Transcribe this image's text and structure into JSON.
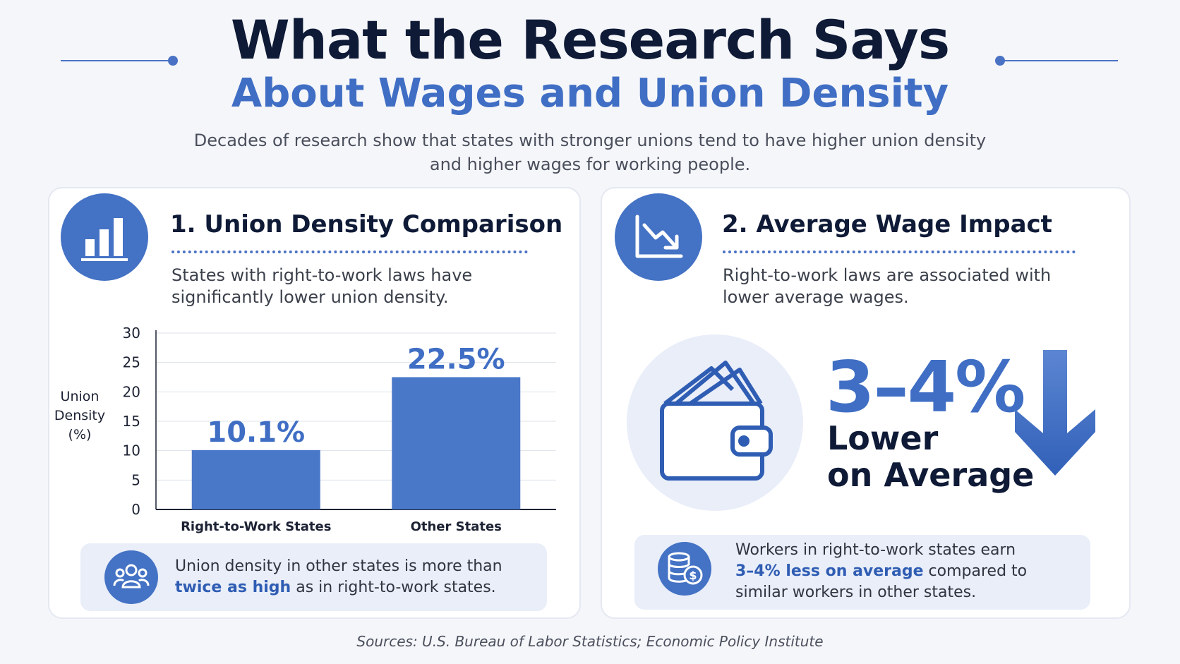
{
  "header": {
    "title": "What the Research Says",
    "subtitle": "About Wages and Union Density",
    "intro_line1": "Decades of research show that states with stronger unions tend to have higher union density",
    "intro_line2": "and higher wages for working people."
  },
  "left_card": {
    "title": "1. Union Density Comparison",
    "desc_line1": "States with right-to-work laws have",
    "desc_line2": "significantly lower union density.",
    "callout_pre": "Union density in other states is more than",
    "callout_bold": "twice as high",
    "callout_post": " as in right-to-work states."
  },
  "right_card": {
    "title": "2. Average Wage Impact",
    "desc_line1": "Right-to-work laws are associated with",
    "desc_line2": "lower average wages.",
    "big_value": "3–4%",
    "big_line1": "Lower",
    "big_line2": "on Average",
    "callout_pre": "Workers in right-to-work states earn",
    "callout_bold": "3–4% less on average",
    "callout_post": " compared to",
    "callout_line3": "similar workers in other states."
  },
  "chart_data": {
    "type": "bar",
    "categories": [
      "Right-to-Work States",
      "Other States"
    ],
    "values": [
      10.1,
      22.5
    ],
    "value_labels": [
      "10.1%",
      "22.5%"
    ],
    "ylabel_lines": [
      "Union",
      "Density",
      "(%)"
    ],
    "yticks": [
      "0",
      "5",
      "10",
      "15",
      "20",
      "25",
      "30"
    ],
    "ylim": [
      0,
      30
    ],
    "grid": true,
    "bar_color": "#4a78c9",
    "label_color": "#3f6ec4"
  },
  "footer": {
    "sources": "Sources: U.S. Bureau of Labor Statistics; Economic Policy Institute"
  },
  "colors": {
    "accent": "#4472c4",
    "title_dark": "#0e1a36"
  },
  "icons": [
    "bar-chart-icon",
    "trend-down-icon",
    "people-group-icon",
    "wallet-icon",
    "coins-dollar-icon",
    "down-arrow-icon"
  ]
}
